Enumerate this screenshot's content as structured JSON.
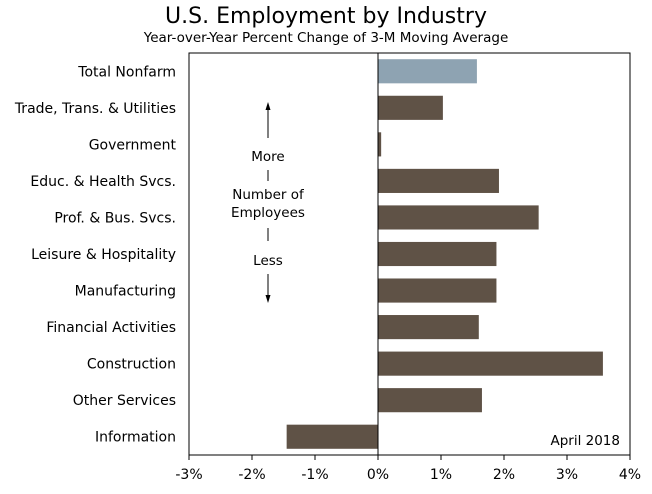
{
  "chart_data": {
    "type": "bar",
    "orientation": "horizontal",
    "title": "U.S. Employment by Industry",
    "subtitle": "Year-over-Year Percent Change of 3-M Moving Average",
    "categories": [
      "Total Nonfarm",
      "Trade, Trans. & Utilities",
      "Government",
      "Educ. & Health Svcs.",
      "Prof. & Bus. Svcs.",
      "Leisure & Hospitality",
      "Manufacturing",
      "Financial Activities",
      "Construction",
      "Other Services",
      "Information"
    ],
    "values": [
      1.57,
      1.03,
      0.05,
      1.92,
      2.55,
      1.88,
      1.88,
      1.6,
      3.57,
      1.65,
      -1.45
    ],
    "xlim": [
      -3,
      4
    ],
    "xticks": [
      -3,
      -2,
      -1,
      0,
      1,
      2,
      3,
      4
    ],
    "xtick_labels": [
      "-3%",
      "-2%",
      "-1%",
      "0%",
      "1%",
      "2%",
      "3%",
      "4%"
    ],
    "highlight_index": 0,
    "colors": {
      "highlight": "#8ea3b2",
      "bar": "#5f5246",
      "axis": "#000000"
    },
    "annotation": {
      "top": "More",
      "middle_line1": "Number of",
      "middle_line2": "Employees",
      "bottom": "Less"
    },
    "date_label": "April 2018"
  }
}
